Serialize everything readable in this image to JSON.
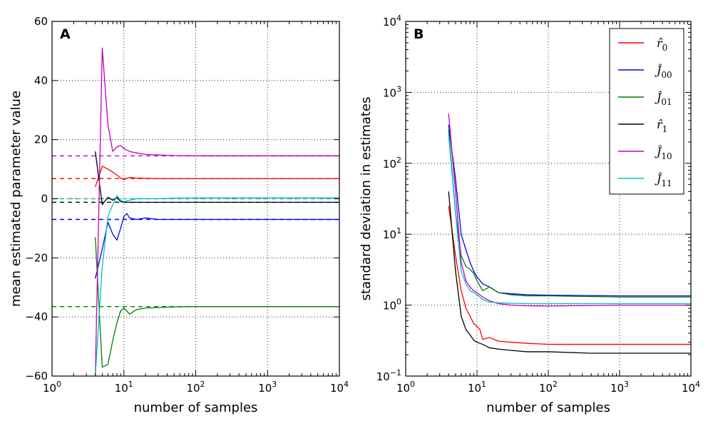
{
  "chart_data": [
    {
      "type": "line",
      "panel_label": "A",
      "xlabel": "number of samples",
      "ylabel": "mean estimated parameter value",
      "xscale": "log",
      "xlim": [
        1,
        10000
      ],
      "ylim": [
        -60,
        60
      ],
      "grid": true,
      "x_ticks": [
        {
          "value": 1,
          "base": "10",
          "exp": "0"
        },
        {
          "value": 10,
          "base": "10",
          "exp": "1"
        },
        {
          "value": 100,
          "base": "10",
          "exp": "2"
        },
        {
          "value": 1000,
          "base": "10",
          "exp": "3"
        },
        {
          "value": 10000,
          "base": "10",
          "exp": "4"
        }
      ],
      "y_ticks": [
        {
          "value": 60,
          "label": "60"
        },
        {
          "value": 40,
          "label": "40"
        },
        {
          "value": 20,
          "label": "20"
        },
        {
          "value": 0,
          "label": "0"
        },
        {
          "value": -20,
          "label": "−20"
        },
        {
          "value": -40,
          "label": "−40"
        },
        {
          "value": -60,
          "label": "−60"
        }
      ],
      "reference_lines": [
        {
          "series": "r0",
          "y": 6.8,
          "color": "#ff0000"
        },
        {
          "series": "J00",
          "y": -7.0,
          "color": "#0000ff"
        },
        {
          "series": "J01",
          "y": -36.5,
          "color": "#008000"
        },
        {
          "series": "r1",
          "y": -1.2,
          "color": "#000000"
        },
        {
          "series": "J10",
          "y": 14.5,
          "color": "#bf00bf"
        },
        {
          "series": "J11",
          "y": 0.0,
          "color": "#00bfbf"
        }
      ],
      "series": [
        {
          "key": "r0",
          "color": "#ff0000",
          "x": [
            4,
            5,
            6,
            7,
            8,
            9,
            10,
            12,
            15,
            20,
            30,
            50,
            100,
            1000,
            10000
          ],
          "y": [
            4,
            11,
            10,
            9,
            8,
            7,
            6.5,
            7.2,
            7,
            6.9,
            6.8,
            6.8,
            6.8,
            6.8,
            6.8
          ]
        },
        {
          "key": "J00",
          "color": "#0000ff",
          "x": [
            4,
            5,
            6,
            7,
            8,
            9,
            10,
            11,
            12,
            15,
            20,
            30,
            50,
            100,
            1000,
            10000
          ],
          "y": [
            -27,
            -17,
            -8,
            -12,
            -14,
            -10,
            -6,
            -5,
            -6.5,
            -7,
            -6.5,
            -7,
            -7,
            -7,
            -7,
            -7
          ]
        },
        {
          "key": "J01",
          "color": "#008000",
          "x": [
            4,
            5,
            6,
            7,
            8,
            9,
            10,
            12,
            15,
            20,
            30,
            50,
            100,
            1000,
            10000
          ],
          "y": [
            -13,
            -57,
            -56,
            -48,
            -42,
            -38,
            -37,
            -39,
            -37.5,
            -37,
            -36.8,
            -36.6,
            -36.5,
            -36.5,
            -36.5
          ]
        },
        {
          "key": "r1",
          "color": "#000000",
          "x": [
            4,
            5,
            6,
            7,
            8,
            9,
            10,
            15,
            20,
            50,
            100,
            1000,
            10000
          ],
          "y": [
            16,
            -2,
            0.5,
            -0.5,
            0.5,
            -1,
            -1.2,
            -1.2,
            -1.2,
            -1.2,
            -1.2,
            -1.2,
            -1.2
          ]
        },
        {
          "key": "J10",
          "color": "#bf00bf",
          "x": [
            4,
            5,
            6,
            7,
            8,
            9,
            10,
            12,
            15,
            20,
            30,
            50,
            100,
            1000,
            10000
          ],
          "y": [
            -60,
            51,
            25,
            16,
            17.5,
            18,
            17,
            16,
            15.5,
            15,
            14.8,
            14.6,
            14.5,
            14.5,
            14.5
          ]
        },
        {
          "key": "J11",
          "color": "#00bfbf",
          "x": [
            4,
            5,
            6,
            7,
            8,
            9,
            10,
            12,
            15,
            20,
            30,
            50,
            100,
            1000,
            10000
          ],
          "y": [
            -60,
            -23,
            -6,
            -2,
            1,
            -0.5,
            -1,
            -0.5,
            0,
            0,
            0,
            0.2,
            0.3,
            0.3,
            0.3
          ]
        }
      ]
    },
    {
      "type": "line",
      "panel_label": "B",
      "xlabel": "number of samples",
      "ylabel": "standard deviation in estimates",
      "xscale": "log",
      "yscale": "log",
      "xlim": [
        1,
        10000
      ],
      "ylim": [
        0.1,
        10000
      ],
      "grid": true,
      "legend_position": "top-right",
      "x_ticks": [
        {
          "value": 1,
          "base": "10",
          "exp": "0"
        },
        {
          "value": 10,
          "base": "10",
          "exp": "1"
        },
        {
          "value": 100,
          "base": "10",
          "exp": "2"
        },
        {
          "value": 1000,
          "base": "10",
          "exp": "3"
        },
        {
          "value": 10000,
          "base": "10",
          "exp": "4"
        }
      ],
      "y_ticks": [
        {
          "value": 10000,
          "base": "10",
          "exp": "4"
        },
        {
          "value": 1000,
          "base": "10",
          "exp": "3"
        },
        {
          "value": 100,
          "base": "10",
          "exp": "2"
        },
        {
          "value": 10,
          "base": "10",
          "exp": "1"
        },
        {
          "value": 1,
          "base": "10",
          "exp": "0"
        },
        {
          "value": 0.1,
          "base": "10",
          "exp": "−1"
        }
      ],
      "legend": [
        {
          "key": "r0",
          "symbol": "r̂",
          "sub": "0",
          "color": "#ff0000"
        },
        {
          "key": "J00",
          "symbol": "Ĵ",
          "sub": "00",
          "color": "#0000ff"
        },
        {
          "key": "J01",
          "symbol": "Ĵ",
          "sub": "01",
          "color": "#008000"
        },
        {
          "key": "r1",
          "symbol": "r̂",
          "sub": "1",
          "color": "#000000"
        },
        {
          "key": "J10",
          "symbol": "Ĵ",
          "sub": "10",
          "color": "#bf00bf"
        },
        {
          "key": "J11",
          "symbol": "Ĵ",
          "sub": "11",
          "color": "#00bfbf"
        }
      ],
      "series": [
        {
          "key": "r0",
          "color": "#ff0000",
          "x": [
            4,
            5,
            6,
            7,
            8,
            9,
            10,
            11,
            12,
            15,
            20,
            30,
            50,
            100,
            1000,
            10000
          ],
          "y": [
            25,
            5,
            1.6,
            0.9,
            0.7,
            0.55,
            0.5,
            0.45,
            0.33,
            0.35,
            0.31,
            0.3,
            0.29,
            0.28,
            0.28,
            0.28
          ]
        },
        {
          "key": "J00",
          "color": "#0000ff",
          "x": [
            4,
            5,
            6,
            7,
            8,
            9,
            10,
            12,
            15,
            20,
            30,
            50,
            100,
            1000,
            10000
          ],
          "y": [
            350,
            60,
            10,
            6,
            4,
            3,
            2.5,
            2,
            1.8,
            1.5,
            1.45,
            1.4,
            1.38,
            1.35,
            1.35
          ]
        },
        {
          "key": "J01",
          "color": "#008000",
          "x": [
            4,
            5,
            6,
            7,
            8,
            9,
            10,
            12,
            15,
            20,
            30,
            50,
            100,
            1000,
            10000
          ],
          "y": [
            300,
            20,
            5,
            3.5,
            3.2,
            2.8,
            2.2,
            1.6,
            1.8,
            1.5,
            1.4,
            1.35,
            1.35,
            1.3,
            1.3
          ]
        },
        {
          "key": "r1",
          "color": "#000000",
          "x": [
            4,
            5,
            6,
            7,
            8,
            9,
            10,
            12,
            15,
            20,
            30,
            50,
            100,
            400,
            1000,
            10000
          ],
          "y": [
            40,
            3,
            0.7,
            0.45,
            0.38,
            0.32,
            0.3,
            0.28,
            0.25,
            0.24,
            0.23,
            0.22,
            0.22,
            0.21,
            0.21,
            0.21
          ]
        },
        {
          "key": "J10",
          "color": "#bf00bf",
          "x": [
            4,
            5,
            6,
            7,
            8,
            9,
            10,
            12,
            15,
            20,
            30,
            50,
            100,
            1000,
            10000
          ],
          "y": [
            500,
            40,
            4,
            2.2,
            1.8,
            1.6,
            1.5,
            1.3,
            1.15,
            1.05,
            1.0,
            0.98,
            0.97,
            1.0,
            1.0
          ]
        },
        {
          "key": "J11",
          "color": "#00bfbf",
          "x": [
            4,
            5,
            6,
            7,
            8,
            9,
            10,
            12,
            15,
            20,
            30,
            50,
            100,
            1000,
            10000
          ],
          "y": [
            250,
            20,
            3,
            2,
            1.6,
            1.5,
            1.4,
            1.2,
            1.1,
            1.08,
            1.06,
            1.05,
            1.05,
            1.05,
            1.05
          ]
        }
      ]
    }
  ]
}
